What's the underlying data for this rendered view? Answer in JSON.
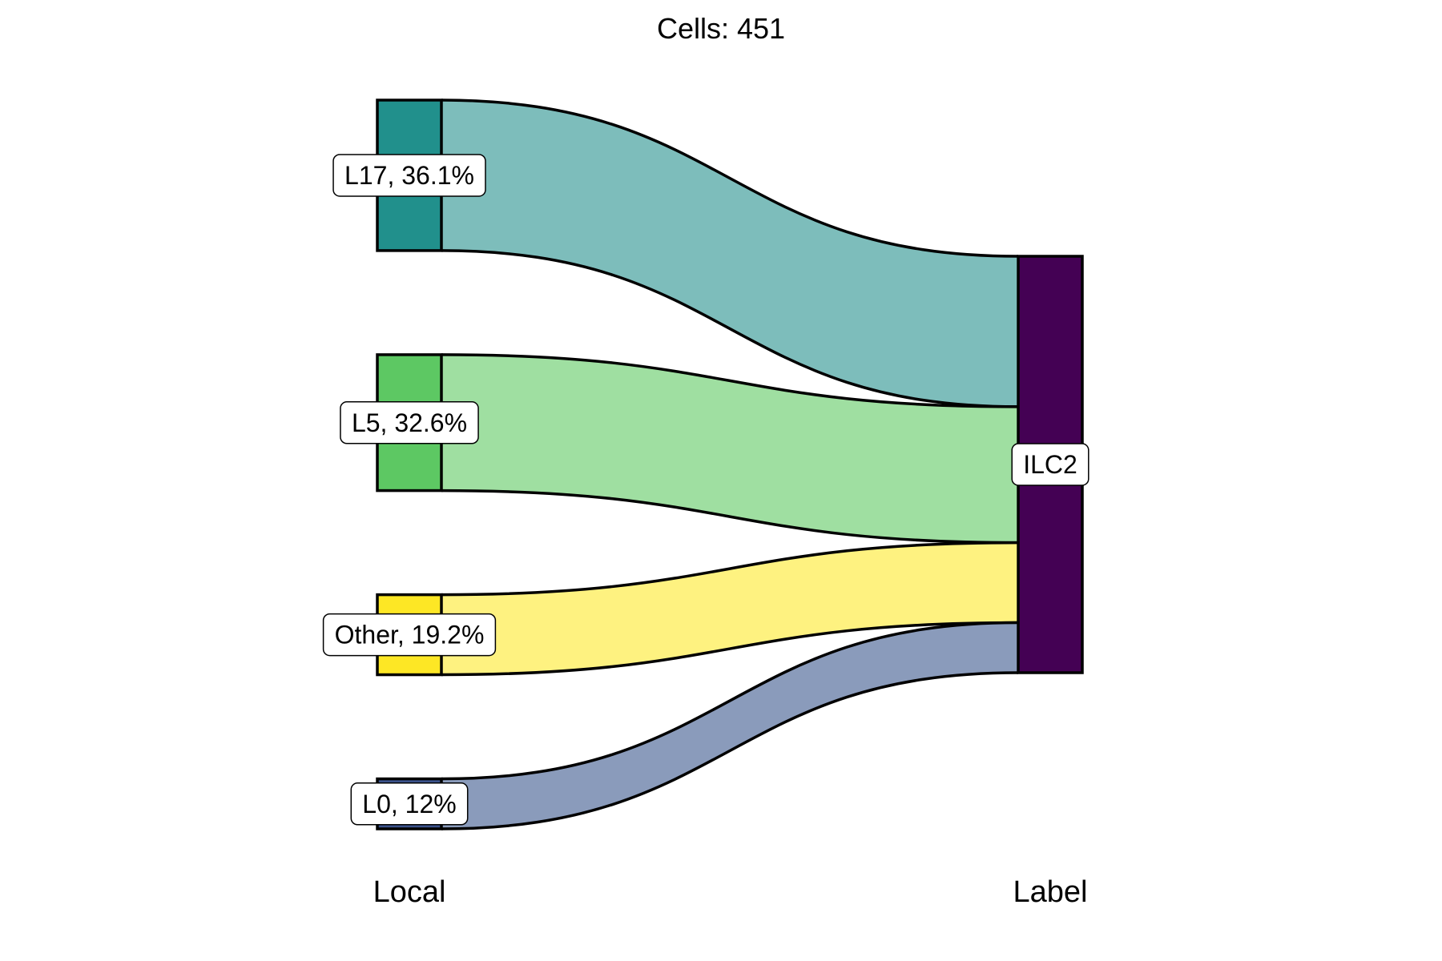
{
  "chart_data": {
    "type": "sankey",
    "title": "Cells:  451",
    "axes": {
      "left": "Local",
      "right": "Label"
    },
    "source_nodes": [
      {
        "name": "L17",
        "label": "L17, 36.1%",
        "percent": 36.1,
        "node_color": "#21908C",
        "flow_color": "#7DBDBB"
      },
      {
        "name": "L5",
        "label": "L5, 32.6%",
        "percent": 32.6,
        "node_color": "#5DC863",
        "flow_color": "#9FDFA1"
      },
      {
        "name": "Other",
        "label": "Other, 19.2%",
        "percent": 19.2,
        "node_color": "#FDE725",
        "flow_color": "#FEF280"
      },
      {
        "name": "L0",
        "label": "L0, 12%",
        "percent": 12,
        "node_color": "#3B528B",
        "flow_color": "#8A9BBB"
      }
    ],
    "target_nodes": [
      {
        "name": "ILC2",
        "label": "ILC2",
        "percent": 100,
        "node_color": "#440154"
      }
    ],
    "flows": [
      {
        "from": "L17",
        "to": "ILC2",
        "percent": 36.1
      },
      {
        "from": "L5",
        "to": "ILC2",
        "percent": 32.6
      },
      {
        "from": "Other",
        "to": "ILC2",
        "percent": 19.2
      },
      {
        "from": "L0",
        "to": "ILC2",
        "percent": 12
      }
    ]
  }
}
